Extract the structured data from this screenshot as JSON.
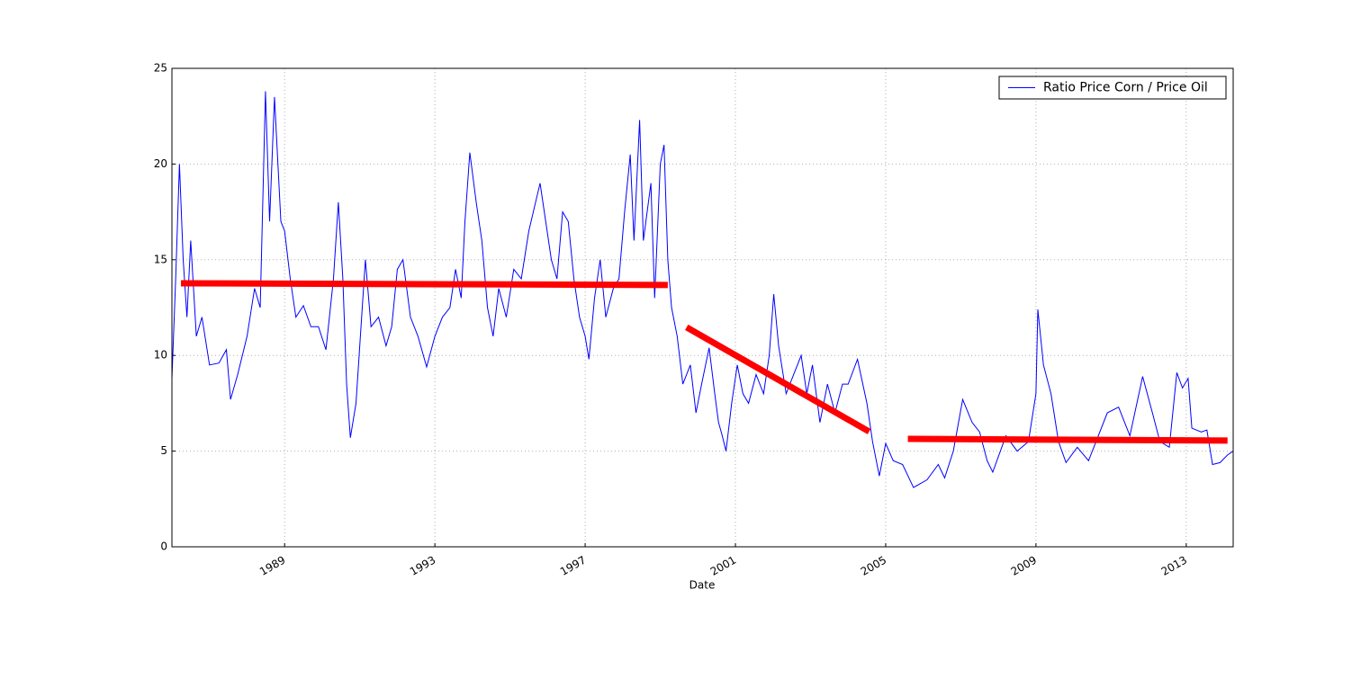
{
  "chart_data": {
    "type": "line",
    "xlabel": "Date",
    "xlim": [
      1986.0,
      2014.25
    ],
    "xticks": [
      1989,
      1993,
      1997,
      2001,
      2005,
      2009,
      2013
    ],
    "ylim": [
      0,
      25
    ],
    "yticks": [
      0,
      5,
      10,
      15,
      20,
      25
    ],
    "grid": true,
    "legend": "upper right",
    "x": [
      1986.0,
      1986.1,
      1986.2,
      1986.3,
      1986.4,
      1986.5,
      1986.65,
      1986.8,
      1987.0,
      1987.25,
      1987.45,
      1987.56,
      1987.75,
      1988.0,
      1988.2,
      1988.35,
      1988.49,
      1988.6,
      1988.73,
      1988.9,
      1989.0,
      1989.15,
      1989.3,
      1989.5,
      1989.7,
      1989.9,
      1990.1,
      1990.3,
      1990.43,
      1990.55,
      1990.65,
      1990.75,
      1990.9,
      1991.05,
      1991.15,
      1991.3,
      1991.5,
      1991.7,
      1991.85,
      1992.0,
      1992.15,
      1992.35,
      1992.55,
      1992.78,
      1993.0,
      1993.2,
      1993.4,
      1993.55,
      1993.7,
      1993.8,
      1993.93,
      1994.1,
      1994.25,
      1994.4,
      1994.55,
      1994.7,
      1994.9,
      1995.1,
      1995.3,
      1995.5,
      1995.8,
      1995.95,
      1996.1,
      1996.25,
      1996.4,
      1996.55,
      1996.7,
      1996.85,
      1997.0,
      1997.1,
      1997.25,
      1997.4,
      1997.55,
      1997.75,
      1997.9,
      1998.05,
      1998.2,
      1998.3,
      1998.45,
      1998.55,
      1998.75,
      1998.85,
      1999.0,
      1999.1,
      1999.2,
      1999.3,
      1999.45,
      1999.6,
      1999.8,
      1999.95,
      2000.1,
      2000.3,
      2000.45,
      2000.55,
      2000.65,
      2000.75,
      2000.9,
      2001.05,
      2001.2,
      2001.35,
      2001.55,
      2001.75,
      2001.9,
      2002.02,
      2002.15,
      2002.35,
      2002.55,
      2002.75,
      2002.9,
      2003.05,
      2003.25,
      2003.45,
      2003.65,
      2003.85,
      2004.0,
      2004.25,
      2004.5,
      2004.65,
      2004.83,
      2005.0,
      2005.2,
      2005.45,
      2005.74,
      2006.1,
      2006.4,
      2006.57,
      2006.8,
      2007.05,
      2007.3,
      2007.5,
      2007.7,
      2007.85,
      2008.2,
      2008.5,
      2008.8,
      2009.0,
      2009.05,
      2009.2,
      2009.4,
      2009.6,
      2009.8,
      2010.1,
      2010.4,
      2010.6,
      2010.9,
      2011.2,
      2011.5,
      2011.84,
      2012.1,
      2012.3,
      2012.55,
      2012.75,
      2012.9,
      2013.05,
      2013.15,
      2013.4,
      2013.55,
      2013.7,
      2013.9,
      2014.1,
      2014.25
    ],
    "series": [
      {
        "name": "Ratio Price Corn / Price Oil",
        "color": "#0000ff",
        "values": [
          8.8,
          14,
          20,
          15,
          12,
          16,
          11,
          12,
          9.5,
          9.6,
          10.3,
          7.7,
          9,
          11,
          13.5,
          12.5,
          23.8,
          17,
          23.5,
          17,
          16.5,
          14,
          12,
          12.6,
          11.5,
          11.5,
          10.3,
          14,
          18,
          14,
          8.5,
          5.7,
          7.5,
          12,
          15,
          11.5,
          12,
          10.5,
          11.5,
          14.5,
          15,
          12,
          11,
          9.4,
          11,
          12,
          12.5,
          14.5,
          13,
          17,
          20.6,
          18,
          16,
          12.5,
          11,
          13.5,
          12,
          14.5,
          14,
          16.5,
          19,
          17,
          15,
          14,
          17.5,
          17,
          14,
          12,
          11,
          9.8,
          13,
          15,
          12,
          13.5,
          14,
          17.5,
          20.5,
          16,
          22.3,
          16,
          19,
          13,
          20,
          21,
          15,
          12.5,
          11,
          8.5,
          9.5,
          7,
          8.5,
          10.4,
          8,
          6.5,
          5.8,
          5,
          7.5,
          9.5,
          8,
          7.5,
          9,
          8,
          10,
          13.2,
          10.5,
          8,
          9,
          10,
          8,
          9.5,
          6.5,
          8.5,
          7,
          8.5,
          8.5,
          9.8,
          7.5,
          5.5,
          3.7,
          5.4,
          4.5,
          4.3,
          3.1,
          3.5,
          4.3,
          3.6,
          5,
          7.7,
          6.5,
          6,
          4.5,
          3.9,
          5.8,
          5,
          5.5,
          8,
          12.4,
          9.5,
          8,
          5.5,
          4.4,
          5.2,
          4.5,
          5.5,
          7,
          7.3,
          5.8,
          8.9,
          7,
          5.5,
          5.2,
          9.1,
          8.3,
          8.8,
          6.2,
          6,
          6.1,
          4.3,
          4.4,
          4.8,
          5
        ]
      }
    ],
    "trend_lines": [
      {
        "color": "#ff0000",
        "x": [
          1986.24,
          1999.2
        ],
        "y": [
          13.77,
          13.68
        ]
      },
      {
        "color": "#ff0000",
        "x": [
          1999.7,
          2004.56
        ],
        "y": [
          11.47,
          6.02
        ]
      },
      {
        "color": "#ff0000",
        "x": [
          2005.59,
          2014.1
        ],
        "y": [
          5.64,
          5.55
        ]
      }
    ]
  }
}
